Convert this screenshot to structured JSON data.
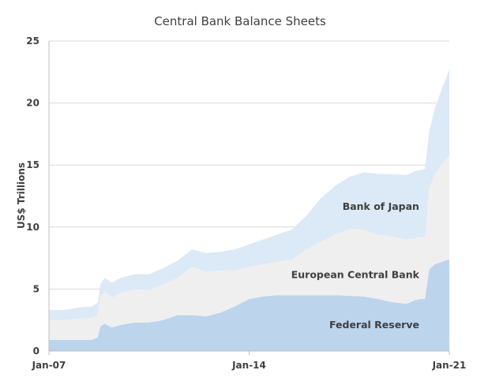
{
  "chart_data": {
    "type": "area",
    "stacked": true,
    "title": "Central Bank Balance Sheets",
    "xlabel": "",
    "ylabel": "US$ Trillions",
    "ylim": [
      0,
      25
    ],
    "yticks": [
      "0",
      "5",
      "10",
      "15",
      "20",
      "25"
    ],
    "xrange": [
      2007.0,
      2021.0
    ],
    "xticks": [
      {
        "x": 2007.0,
        "label": "Jan-07"
      },
      {
        "x": 2014.0,
        "label": "Jan-14"
      },
      {
        "x": 2021.0,
        "label": "Jan-21"
      }
    ],
    "grid": "horizontal",
    "legend": "inline-labels",
    "colors": {
      "Federal Reserve": "#bcd4ec",
      "European Central Bank": "#efefef",
      "Bank of Japan": "#dce9f6"
    },
    "x": [
      2007.0,
      2007.5,
      2008.0,
      2008.5,
      2008.7,
      2008.8,
      2008.95,
      2009.2,
      2009.5,
      2010.0,
      2010.5,
      2011.0,
      2011.5,
      2012.0,
      2012.5,
      2013.0,
      2013.5,
      2014.0,
      2014.5,
      2015.0,
      2015.5,
      2016.0,
      2016.5,
      2017.0,
      2017.5,
      2018.0,
      2018.5,
      2019.0,
      2019.5,
      2019.8,
      2020.0,
      2020.15,
      2020.3,
      2020.5,
      2020.75,
      2021.0
    ],
    "series": [
      {
        "name": "Federal Reserve",
        "values": [
          0.9,
          0.9,
          0.9,
          0.9,
          1.1,
          2.0,
          2.2,
          1.9,
          2.1,
          2.3,
          2.3,
          2.5,
          2.9,
          2.9,
          2.8,
          3.1,
          3.6,
          4.2,
          4.4,
          4.5,
          4.5,
          4.5,
          4.5,
          4.5,
          4.45,
          4.4,
          4.2,
          3.95,
          3.8,
          4.1,
          4.2,
          4.2,
          6.6,
          7.0,
          7.2,
          7.4
        ]
      },
      {
        "name": "European Central Bank",
        "values": [
          1.6,
          1.6,
          1.7,
          1.8,
          1.8,
          2.4,
          2.6,
          2.4,
          2.6,
          2.7,
          2.6,
          2.9,
          3.0,
          3.9,
          3.6,
          3.4,
          2.9,
          2.6,
          2.6,
          2.7,
          2.9,
          3.7,
          4.3,
          4.9,
          5.4,
          5.4,
          5.2,
          5.3,
          5.2,
          5.0,
          5.0,
          5.0,
          6.6,
          7.2,
          8.0,
          8.4
        ]
      },
      {
        "name": "Bank of Japan",
        "values": [
          0.8,
          0.8,
          0.9,
          0.9,
          1.0,
          1.0,
          1.1,
          1.2,
          1.2,
          1.2,
          1.3,
          1.3,
          1.4,
          1.4,
          1.5,
          1.5,
          1.7,
          1.8,
          2.0,
          2.2,
          2.4,
          2.7,
          3.5,
          3.9,
          4.2,
          4.6,
          4.9,
          5.0,
          5.2,
          5.4,
          5.4,
          5.5,
          4.5,
          5.4,
          6.0,
          6.9
        ]
      }
    ]
  }
}
